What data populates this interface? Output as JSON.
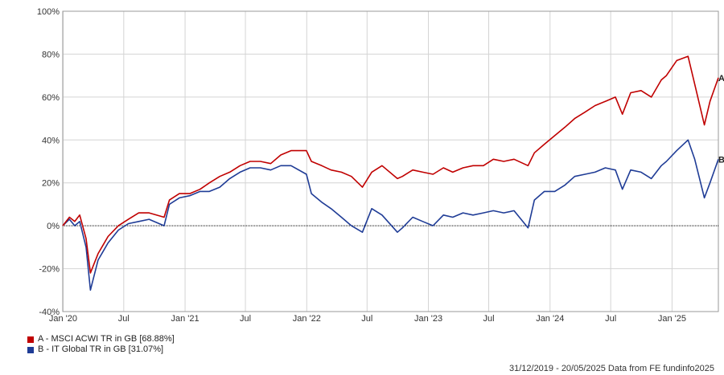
{
  "chart_data": {
    "type": "line",
    "title": "",
    "xlabel": "",
    "ylabel": "",
    "ylim": [
      -40,
      100
    ],
    "y_ticks": [
      "-40%",
      "-20%",
      "0%",
      "20%",
      "40%",
      "60%",
      "80%",
      "100%"
    ],
    "y_tick_values": [
      -40,
      -20,
      0,
      20,
      40,
      60,
      80,
      100
    ],
    "x_ticks": [
      "Jan '20",
      "Jul",
      "Jan '21",
      "Jul",
      "Jan '22",
      "Jul",
      "Jan '23",
      "Jul",
      "Jan '24",
      "Jul",
      "Jan '25"
    ],
    "x_tick_dates": [
      "2020-01-01",
      "2020-07-01",
      "2021-01-01",
      "2021-07-01",
      "2022-01-01",
      "2022-07-01",
      "2023-01-01",
      "2023-07-01",
      "2024-01-01",
      "2024-07-01",
      "2025-01-01"
    ],
    "x_range": [
      "2019-12-31",
      "2025-05-20"
    ],
    "grid": true,
    "zero_line": true,
    "series": [
      {
        "key": "A",
        "name": "A - MSCI ACWI TR in GB [68.88%]",
        "color": "#c00000",
        "x": [
          "2019-12-31",
          "2020-01-20",
          "2020-02-05",
          "2020-02-20",
          "2020-03-10",
          "2020-03-23",
          "2020-04-15",
          "2020-05-15",
          "2020-06-15",
          "2020-07-15",
          "2020-08-15",
          "2020-09-15",
          "2020-10-30",
          "2020-11-15",
          "2020-12-15",
          "2021-01-15",
          "2021-02-15",
          "2021-03-15",
          "2021-04-15",
          "2021-05-15",
          "2021-06-15",
          "2021-07-15",
          "2021-08-15",
          "2021-09-15",
          "2021-10-15",
          "2021-11-15",
          "2021-12-31",
          "2022-01-15",
          "2022-02-15",
          "2022-03-15",
          "2022-04-15",
          "2022-05-15",
          "2022-06-17",
          "2022-07-15",
          "2022-08-15",
          "2022-09-30",
          "2022-10-15",
          "2022-11-15",
          "2022-12-15",
          "2023-01-15",
          "2023-02-15",
          "2023-03-15",
          "2023-04-15",
          "2023-05-15",
          "2023-06-15",
          "2023-07-15",
          "2023-08-15",
          "2023-09-15",
          "2023-10-27",
          "2023-11-15",
          "2023-12-15",
          "2024-01-15",
          "2024-02-15",
          "2024-03-15",
          "2024-04-15",
          "2024-05-15",
          "2024-06-15",
          "2024-07-15",
          "2024-08-05",
          "2024-08-30",
          "2024-09-30",
          "2024-10-31",
          "2024-11-30",
          "2024-12-15",
          "2025-01-15",
          "2025-02-18",
          "2025-03-10",
          "2025-04-08",
          "2025-04-25",
          "2025-05-20"
        ],
        "values": [
          0,
          4,
          2,
          5,
          -6,
          -22,
          -13,
          -5,
          0,
          3,
          6,
          6,
          4,
          12,
          15,
          15,
          17,
          20,
          23,
          25,
          28,
          30,
          30,
          29,
          33,
          35,
          35,
          30,
          28,
          26,
          25,
          23,
          18,
          25,
          28,
          22,
          23,
          26,
          25,
          24,
          27,
          25,
          27,
          28,
          28,
          31,
          30,
          31,
          28,
          34,
          38,
          42,
          46,
          50,
          53,
          56,
          58,
          60,
          52,
          62,
          63,
          60,
          68,
          70,
          77,
          79,
          66,
          47,
          58,
          69
        ]
      },
      {
        "key": "B",
        "name": "B - IT Global TR in GB [31.07%]",
        "color": "#1f3c96",
        "x": [
          "2019-12-31",
          "2020-01-20",
          "2020-02-05",
          "2020-02-20",
          "2020-03-10",
          "2020-03-23",
          "2020-04-15",
          "2020-05-15",
          "2020-06-15",
          "2020-07-15",
          "2020-08-15",
          "2020-09-15",
          "2020-10-30",
          "2020-11-15",
          "2020-12-15",
          "2021-01-15",
          "2021-02-15",
          "2021-03-15",
          "2021-04-15",
          "2021-05-15",
          "2021-06-15",
          "2021-07-15",
          "2021-08-15",
          "2021-09-15",
          "2021-10-15",
          "2021-11-15",
          "2021-12-31",
          "2022-01-15",
          "2022-02-15",
          "2022-03-15",
          "2022-04-15",
          "2022-05-15",
          "2022-06-17",
          "2022-07-15",
          "2022-08-15",
          "2022-09-30",
          "2022-10-15",
          "2022-11-15",
          "2022-12-15",
          "2023-01-15",
          "2023-02-15",
          "2023-03-15",
          "2023-04-15",
          "2023-05-15",
          "2023-06-15",
          "2023-07-15",
          "2023-08-15",
          "2023-09-15",
          "2023-10-27",
          "2023-11-15",
          "2023-12-15",
          "2024-01-15",
          "2024-02-15",
          "2024-03-15",
          "2024-04-15",
          "2024-05-15",
          "2024-06-15",
          "2024-07-15",
          "2024-08-05",
          "2024-08-30",
          "2024-09-30",
          "2024-10-31",
          "2024-11-30",
          "2024-12-15",
          "2025-01-15",
          "2025-02-18",
          "2025-03-10",
          "2025-04-08",
          "2025-04-25",
          "2025-05-20"
        ],
        "values": [
          0,
          3,
          0,
          2,
          -10,
          -30,
          -16,
          -8,
          -2,
          1,
          2,
          3,
          0,
          10,
          13,
          14,
          16,
          16,
          18,
          22,
          25,
          27,
          27,
          26,
          28,
          28,
          24,
          15,
          11,
          8,
          4,
          0,
          -3,
          8,
          5,
          -3,
          -1,
          4,
          2,
          0,
          5,
          4,
          6,
          5,
          6,
          7,
          6,
          7,
          -1,
          12,
          16,
          16,
          19,
          23,
          24,
          25,
          27,
          26,
          17,
          26,
          25,
          22,
          28,
          30,
          35,
          40,
          31,
          13,
          20,
          31
        ]
      }
    ]
  },
  "legend": {
    "items": [
      {
        "label": "A - MSCI ACWI TR in GB [68.88%]",
        "color": "#c00000"
      },
      {
        "label": "B - IT Global TR in GB [31.07%]",
        "color": "#1f3c96"
      }
    ]
  },
  "end_labels": {
    "a": "A",
    "b": "B"
  },
  "footer": "31/12/2019 - 20/05/2025 Data from FE fundinfo2025"
}
